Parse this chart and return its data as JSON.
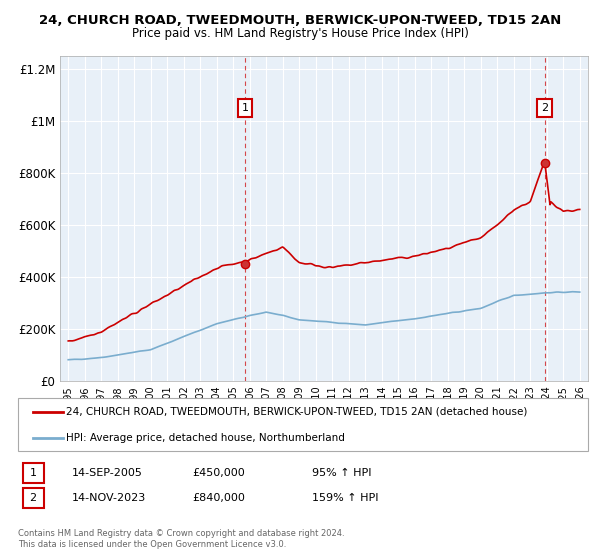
{
  "title": "24, CHURCH ROAD, TWEEDMOUTH, BERWICK-UPON-TWEED, TD15 2AN",
  "subtitle": "Price paid vs. HM Land Registry's House Price Index (HPI)",
  "legend_line1": "24, CHURCH ROAD, TWEEDMOUTH, BERWICK-UPON-TWEED, TD15 2AN (detached house)",
  "legend_line2": "HPI: Average price, detached house, Northumberland",
  "transaction1_label": "1",
  "transaction1_date": "14-SEP-2005",
  "transaction1_price": "£450,000",
  "transaction1_pct": "95% ↑ HPI",
  "transaction1_year": 2005.71,
  "transaction1_value": 450000,
  "transaction2_label": "2",
  "transaction2_date": "14-NOV-2023",
  "transaction2_price": "£840,000",
  "transaction2_pct": "159% ↑ HPI",
  "transaction2_year": 2023.87,
  "transaction2_value": 840000,
  "ylim": [
    0,
    1250000
  ],
  "xlim": [
    1994.5,
    2026.5
  ],
  "yticks": [
    0,
    200000,
    400000,
    600000,
    800000,
    1000000,
    1200000
  ],
  "ytick_labels": [
    "£0",
    "£200K",
    "£400K",
    "£600K",
    "£800K",
    "£1M",
    "£1.2M"
  ],
  "xticks": [
    1995,
    1996,
    1997,
    1998,
    1999,
    2000,
    2001,
    2002,
    2003,
    2004,
    2005,
    2006,
    2007,
    2008,
    2009,
    2010,
    2011,
    2012,
    2013,
    2014,
    2015,
    2016,
    2017,
    2018,
    2019,
    2020,
    2021,
    2022,
    2023,
    2024,
    2025,
    2026
  ],
  "red_line_color": "#cc0000",
  "blue_line_color": "#7aadce",
  "vline_color": "#cc0000",
  "plot_bg_color": "#e8f0f8",
  "background_color": "#ffffff",
  "grid_color": "#ffffff",
  "footnote": "Contains HM Land Registry data © Crown copyright and database right 2024.\nThis data is licensed under the Open Government Licence v3.0."
}
